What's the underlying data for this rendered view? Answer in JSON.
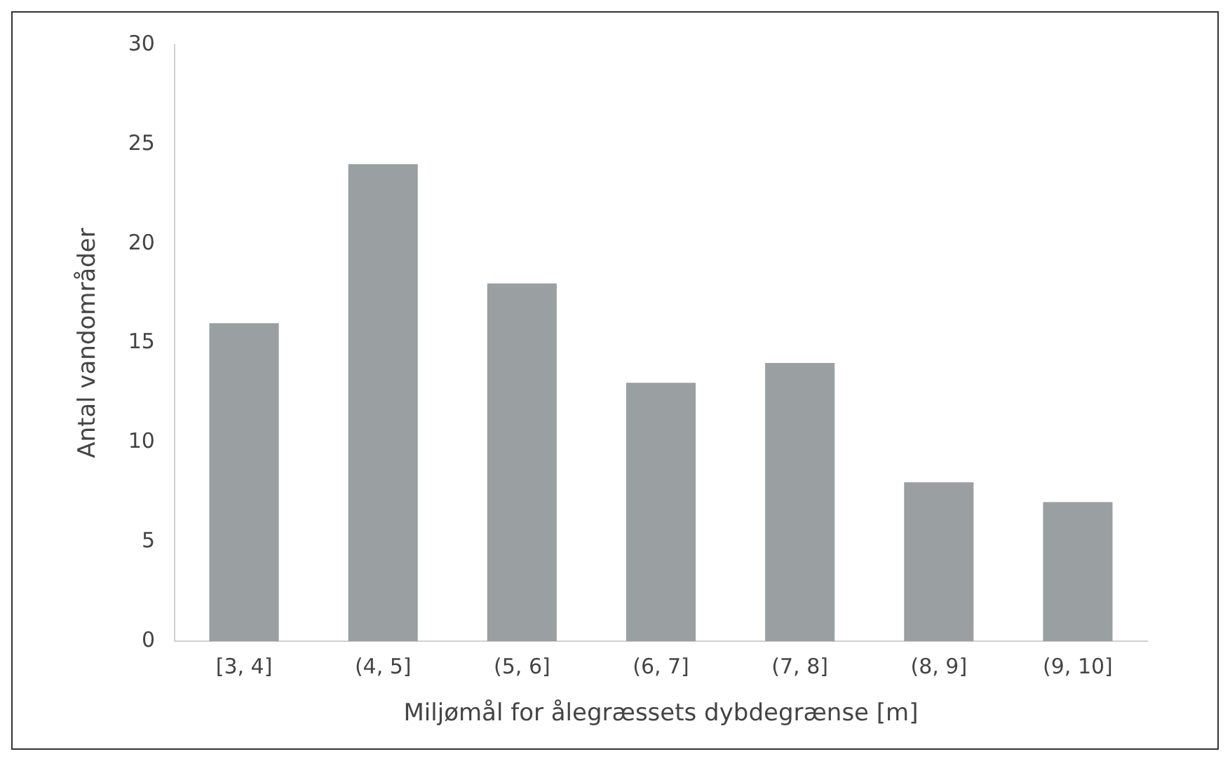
{
  "chart_data": {
    "type": "bar",
    "xlabel": "Miljømål for ålegræssets dybdegrænse [m]",
    "ylabel": "Antal vandområder",
    "categories": [
      "[3, 4]",
      "(4, 5]",
      "(5, 6]",
      "(6, 7]",
      "(7, 8]",
      "(8, 9]",
      "(9, 10]"
    ],
    "values": [
      16,
      24,
      18,
      13,
      14,
      8,
      7
    ],
    "color": "#9a9fa2",
    "ylim": [
      0,
      30
    ],
    "yticks": [
      0,
      5,
      10,
      15,
      20,
      25,
      30
    ],
    "grid": false,
    "legend": false
  }
}
